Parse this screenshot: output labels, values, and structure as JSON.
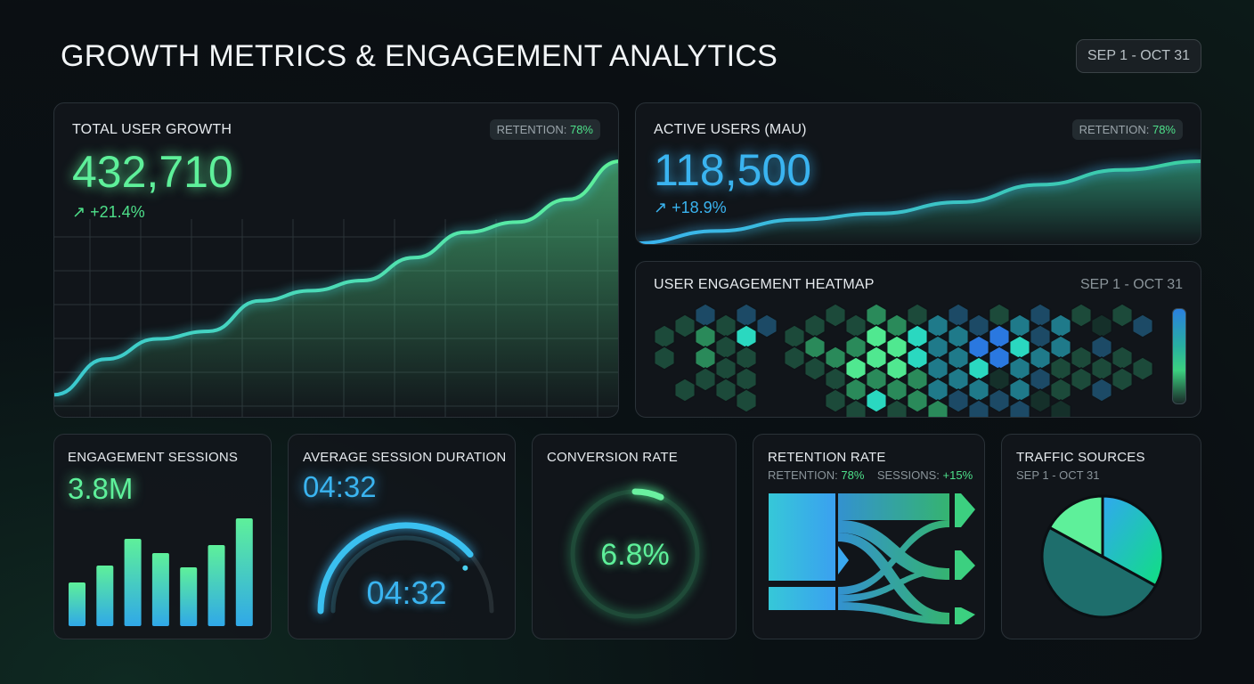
{
  "header": {
    "title": "GROWTH METRICS & ENGAGEMENT ANALYTICS",
    "date_range": "SEP 1 - OCT 31"
  },
  "colors": {
    "green": "#4ee08a",
    "blue": "#3ab4f0",
    "teal": "#1e6e6c",
    "background": "#0b0f13"
  },
  "total_growth": {
    "title": "TOTAL USER GROWTH",
    "badge_label": "RETENTION:",
    "badge_value": "78%",
    "value": "432,710",
    "trend_icon": "arrow-up-right-icon",
    "change": "+21.4%",
    "chart_data": {
      "type": "area",
      "values": [
        8,
        22,
        30,
        33,
        45,
        49,
        53,
        62,
        72,
        76,
        85,
        100
      ],
      "grid": true
    }
  },
  "active_users": {
    "title": "ACTIVE USERS (MAU)",
    "badge_label": "RETENTION:",
    "badge_value": "78%",
    "value": "118,500",
    "trend_icon": "arrow-up-right-icon",
    "change": "+18.9%",
    "chart_data": {
      "type": "area",
      "values": [
        3,
        17,
        30,
        37,
        50,
        70,
        87,
        97
      ],
      "grid": false
    }
  },
  "heatmap": {
    "title": "USER ENGAGEMENT HEATMAP",
    "date_range": "SEP 1 - OCT 31",
    "chart_data": {
      "type": "heatmap",
      "columns": [
        ".22..",
        "2..2.",
        "8332.",
        "2222.",
        "85222",
        "8....",
        ".22..",
        "232..",
        "2.322",
        "23432",
        "34435",
        "34432",
        "25533",
        "66663",
        "86668",
        "87568",
        "27718",
        "65668",
        "88681",
        "66221",
        "2.22.",
        "1828.",
        "2.22.",
        "8.2.."
      ]
    }
  },
  "sessions": {
    "title": "ENGAGEMENT SESSIONS",
    "value": "3.8M",
    "chart_data": {
      "type": "bar",
      "values": [
        49,
        68,
        98,
        82,
        66,
        91,
        121
      ]
    }
  },
  "duration": {
    "title": "AVERAGE SESSION DURATION",
    "value": "04:32",
    "gauge_value": "04:32",
    "gauge_fraction": 0.77
  },
  "conversion": {
    "title": "CONVERSION RATE",
    "value": "6.8%",
    "fraction": 0.068
  },
  "retention": {
    "title": "RETENTION RATE",
    "retention_label": "RETENTION:",
    "retention_value": "78%",
    "sessions_label": "SESSIONS:",
    "sessions_value": "+15%"
  },
  "traffic": {
    "title": "TRAFFIC SOURCES",
    "date_range": "SEP 1 - OCT 31",
    "chart_data": {
      "type": "pie",
      "values": [
        33,
        50,
        17
      ],
      "colors": [
        "#2ab8d8",
        "#1e6e6c",
        "#5ef09a"
      ]
    }
  }
}
